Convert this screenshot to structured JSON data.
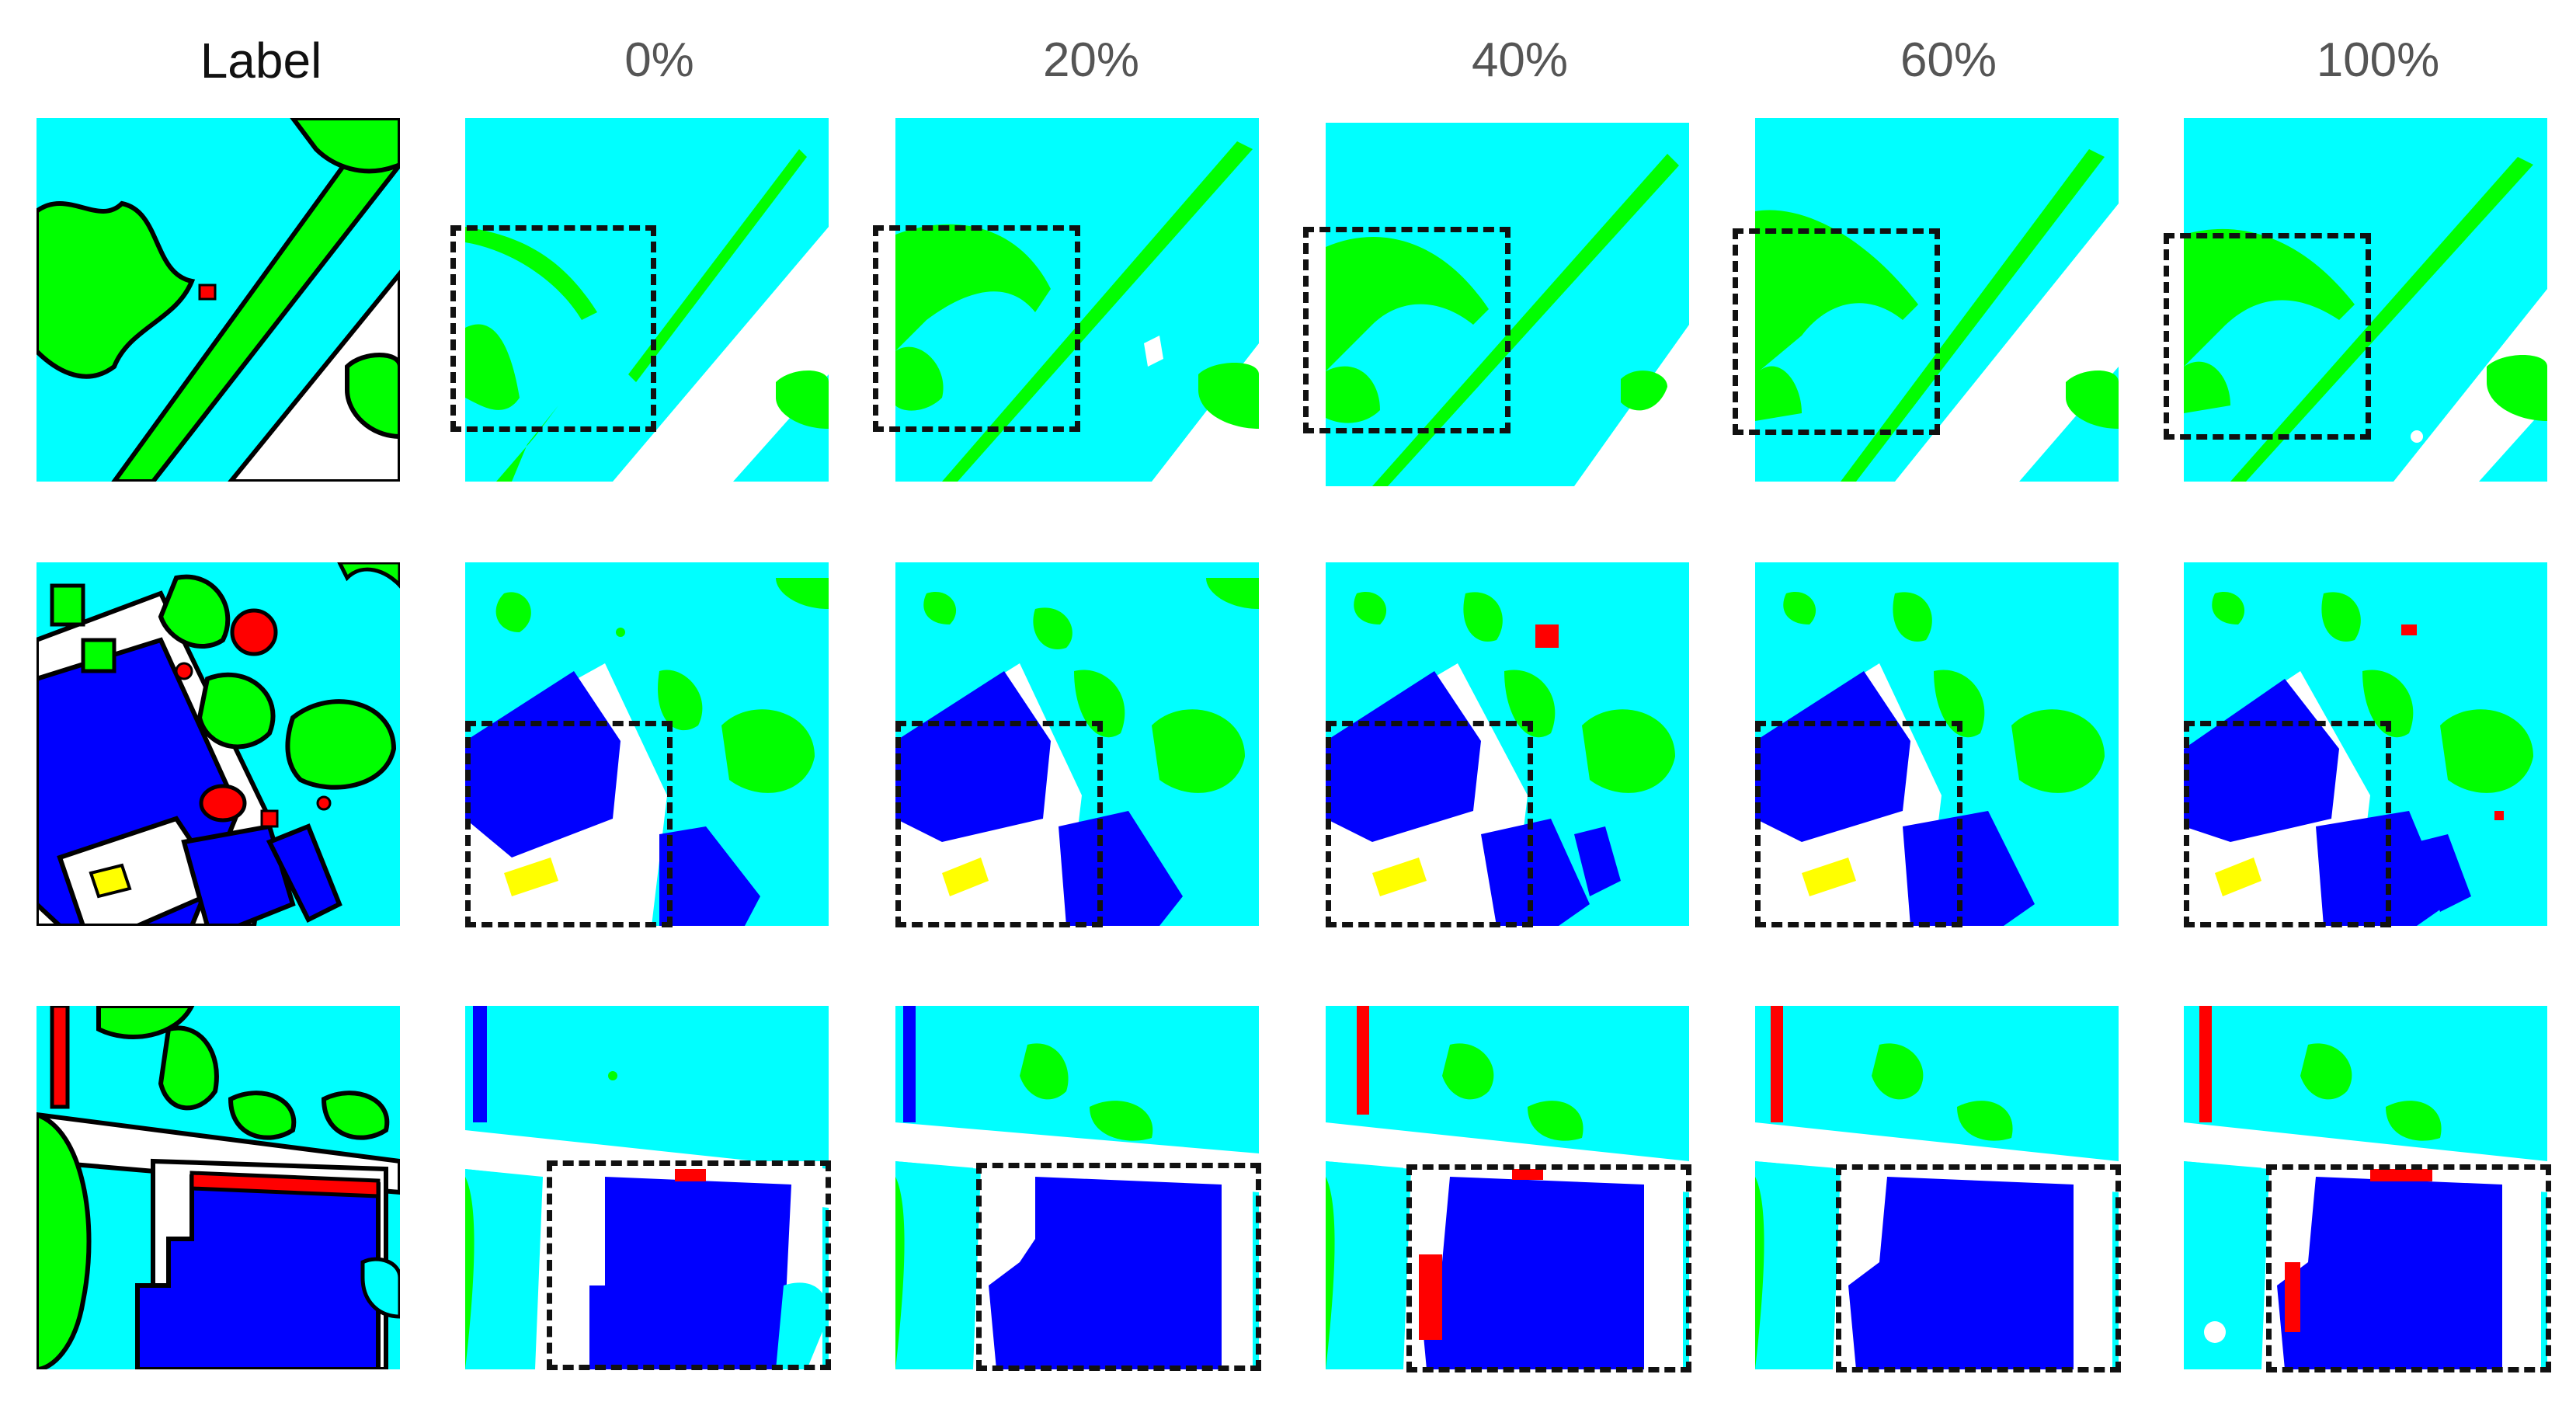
{
  "colors": {
    "impervious_surface": "#ffffff",
    "building": "#0000ff",
    "low_vegetation": "#00ffff",
    "tree": "#00ff00",
    "car": "#ffff00",
    "clutter": "#ff0000",
    "outline": "#000000"
  },
  "columns": [
    {
      "id": "label",
      "header": "Label"
    },
    {
      "id": "p0",
      "header": "0%"
    },
    {
      "id": "p20",
      "header": "20%"
    },
    {
      "id": "p40",
      "header": "40%"
    },
    {
      "id": "p60",
      "header": "60%"
    },
    {
      "id": "p100",
      "header": "100%"
    }
  ],
  "rows": [
    {
      "id": "row-1",
      "scene": "diagonal-road-with-trees"
    },
    {
      "id": "row-2",
      "scene": "buildings-with-courtyard"
    },
    {
      "id": "row-3",
      "scene": "large-building-with-road"
    }
  ]
}
